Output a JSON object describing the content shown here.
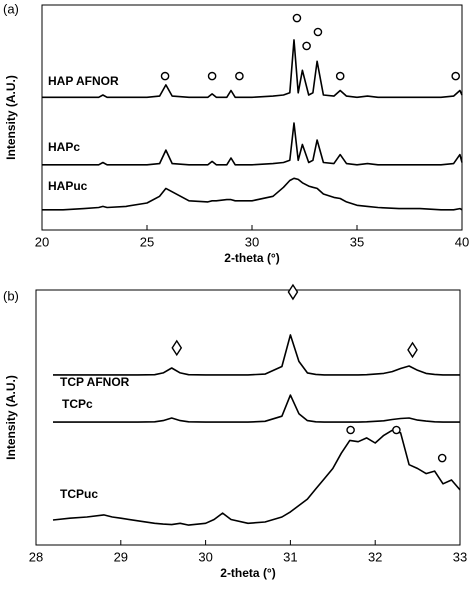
{
  "chart_data": [
    {
      "type": "line",
      "panel_label": "(a)",
      "xlabel": "2-theta (°)",
      "ylabel": "Intensity (A.U.)",
      "xlim": [
        20,
        40
      ],
      "xticks": [
        20,
        25,
        30,
        35,
        40
      ],
      "ylim": [
        0,
        100
      ],
      "x": [
        20,
        21,
        22,
        22.7,
        22.9,
        23.1,
        24,
        25,
        25.6,
        25.9,
        26.2,
        27,
        27.9,
        28.1,
        28.3,
        28.8,
        29.0,
        29.2,
        30,
        31,
        31.5,
        31.8,
        32.0,
        32.2,
        32.4,
        32.7,
        32.9,
        33.1,
        33.4,
        33.9,
        34.2,
        34.5,
        35,
        35.5,
        36,
        37,
        38,
        39,
        39.6,
        39.9,
        40
      ],
      "series": [
        {
          "name": "HAP AFNOR",
          "color": "#000000",
          "values": [
            59,
            59,
            59,
            59,
            60,
            59,
            59,
            59,
            59.5,
            64.5,
            59.5,
            59,
            59,
            60.5,
            59,
            59,
            62,
            59,
            59,
            59.5,
            60,
            61,
            84.5,
            61,
            71,
            60,
            61,
            75,
            60,
            59.5,
            62,
            59.5,
            59,
            59.5,
            59,
            59,
            59,
            59,
            59.5,
            62,
            60
          ]
        },
        {
          "name": "HAPc",
          "color": "#000000",
          "values": [
            29,
            29,
            29,
            29,
            30,
            29,
            29,
            29,
            29.5,
            35.5,
            29.5,
            29,
            29,
            30.5,
            29,
            29,
            32,
            29,
            29,
            29.5,
            30,
            31,
            47.5,
            31,
            38,
            30,
            31,
            40,
            30,
            29.5,
            33.5,
            29.5,
            29,
            29.5,
            29,
            29,
            29,
            29,
            29.5,
            33.5,
            30
          ]
        },
        {
          "name": "HAPuc",
          "color": "#000000",
          "values": [
            9,
            9,
            9.5,
            10,
            10.5,
            10,
            10.5,
            12,
            15,
            18.5,
            17,
            13,
            12.5,
            13,
            13,
            13.5,
            13.5,
            13,
            13,
            15,
            19,
            22,
            23,
            22.5,
            21,
            19.5,
            19,
            18.5,
            16,
            14.5,
            14,
            12.5,
            11,
            10.5,
            10,
            9.5,
            9.5,
            9,
            9,
            9.5,
            9
          ]
        }
      ],
      "markers": [
        {
          "shape": "circle",
          "x": [
            25.86,
            28.1,
            29.4,
            32.14,
            32.6,
            33.14,
            34.2,
            39.7
          ],
          "y": [
            68.4,
            68.4,
            68.4,
            94.2,
            81.8,
            88,
            68.4,
            68.4
          ]
        }
      ]
    },
    {
      "type": "line",
      "panel_label": "(b)",
      "xlabel": "2-theta (°)",
      "ylabel": "Intensity (A.U.)",
      "xlim": [
        28,
        33
      ],
      "xticks": [
        28,
        29,
        30,
        31,
        32,
        33
      ],
      "ylim": [
        0,
        100
      ],
      "x": [
        28.2,
        28.4,
        28.6,
        28.8,
        28.9,
        29.0,
        29.2,
        29.4,
        29.5,
        29.6,
        29.7,
        29.8,
        30.0,
        30.1,
        30.2,
        30.3,
        30.5,
        30.7,
        30.9,
        31.0,
        31.1,
        31.2,
        31.3,
        31.4,
        31.5,
        31.6,
        31.7,
        31.8,
        31.9,
        32.0,
        32.1,
        32.2,
        32.3,
        32.4,
        32.5,
        32.6,
        32.7,
        32.8,
        32.9,
        33.0
      ],
      "series": [
        {
          "name": "TCP AFNOR",
          "color": "#000000",
          "values": [
            66.7,
            66.7,
            66.7,
            66.7,
            66.7,
            66.7,
            66.7,
            66.8,
            67.5,
            69.4,
            67.5,
            66.8,
            66.7,
            66.7,
            66.7,
            66.7,
            66.7,
            67,
            70,
            82.4,
            72,
            67.5,
            66.9,
            66.7,
            66.7,
            66.7,
            66.7,
            66.7,
            66.8,
            67,
            67.3,
            68,
            69.2,
            70.2,
            68.5,
            67.3,
            66.9,
            66.7,
            66.7,
            66.7
          ]
        },
        {
          "name": "TCPc",
          "color": "#000000",
          "values": [
            48.2,
            48.2,
            48.2,
            48.2,
            48.2,
            48.2,
            48.2,
            48.3,
            48.8,
            49.8,
            48.8,
            48.3,
            48.2,
            48.2,
            48.2,
            48.2,
            48.2,
            48.5,
            50.5,
            58.8,
            51.5,
            48.8,
            48.3,
            48.2,
            48.2,
            48.2,
            48.2,
            48.2,
            48.3,
            48.5,
            48.7,
            49.2,
            49.6,
            49.8,
            49,
            48.6,
            48.3,
            48.2,
            48.2,
            48.2
          ]
        },
        {
          "name": "TCPuc",
          "color": "#000000",
          "values": [
            9.8,
            10.5,
            11,
            11.8,
            11,
            10.5,
            9.5,
            8.5,
            8.2,
            8,
            8.5,
            7.8,
            8.5,
            10,
            12.5,
            10,
            8.5,
            9,
            11,
            13,
            15.5,
            18,
            22,
            26,
            30,
            36,
            41,
            40.5,
            42,
            40,
            43,
            45,
            44,
            31.5,
            30,
            28,
            29,
            24,
            25.5,
            21.6
          ]
        }
      ],
      "markers": [
        {
          "shape": "diamond",
          "x": [
            29.66,
            31.03,
            32.44
          ],
          "y": [
            77.3,
            99.2,
            76.5
          ]
        },
        {
          "shape": "circle",
          "x": [
            31.71,
            32.25,
            32.79
          ],
          "y": [
            45.1,
            45.1,
            34.1
          ]
        }
      ]
    }
  ]
}
